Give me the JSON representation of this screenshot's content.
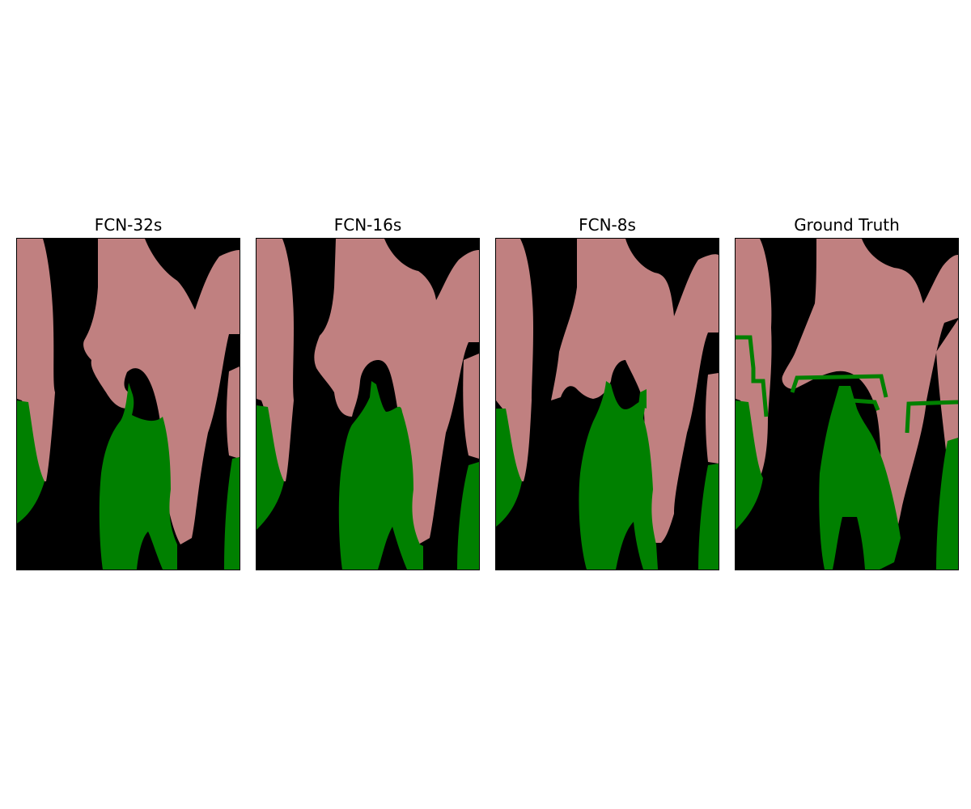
{
  "figure": {
    "panels": [
      {
        "title": "FCN-32s"
      },
      {
        "title": "FCN-16s"
      },
      {
        "title": "FCN-8s"
      },
      {
        "title": "Ground Truth"
      }
    ]
  },
  "colors": {
    "background": "#000000",
    "person": "#C08080",
    "plant": "#008000"
  }
}
